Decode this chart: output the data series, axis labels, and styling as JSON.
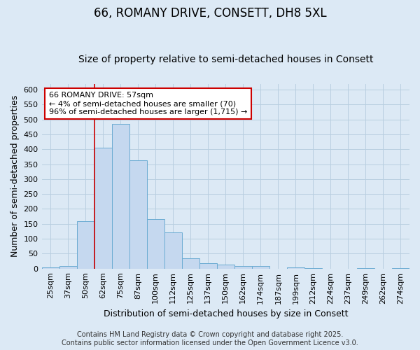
{
  "title": "66, ROMANY DRIVE, CONSETT, DH8 5XL",
  "subtitle": "Size of property relative to semi-detached houses in Consett",
  "xlabel": "Distribution of semi-detached houses by size in Consett",
  "ylabel": "Number of semi-detached properties",
  "categories": [
    "25sqm",
    "37sqm",
    "50sqm",
    "62sqm",
    "75sqm",
    "87sqm",
    "100sqm",
    "112sqm",
    "125sqm",
    "137sqm",
    "150sqm",
    "162sqm",
    "174sqm",
    "187sqm",
    "199sqm",
    "212sqm",
    "224sqm",
    "237sqm",
    "249sqm",
    "262sqm",
    "274sqm"
  ],
  "values": [
    5,
    8,
    160,
    405,
    485,
    362,
    165,
    122,
    35,
    17,
    13,
    9,
    8,
    0,
    4,
    2,
    0,
    0,
    2,
    0,
    2
  ],
  "bar_color": "#c5d8ef",
  "bar_edge_color": "#6aabd2",
  "grid_color": "#b8cfe0",
  "background_color": "#dce9f5",
  "red_line_index": 3,
  "annotation_text": "66 ROMANY DRIVE: 57sqm\n← 4% of semi-detached houses are smaller (70)\n96% of semi-detached houses are larger (1,715) →",
  "annotation_box_facecolor": "#ffffff",
  "annotation_box_edgecolor": "#cc0000",
  "ylim": [
    0,
    620
  ],
  "yticks": [
    0,
    50,
    100,
    150,
    200,
    250,
    300,
    350,
    400,
    450,
    500,
    550,
    600
  ],
  "footer": "Contains HM Land Registry data © Crown copyright and database right 2025.\nContains public sector information licensed under the Open Government Licence v3.0.",
  "title_fontsize": 12,
  "subtitle_fontsize": 10,
  "axis_fontsize": 9,
  "tick_fontsize": 8,
  "annotation_fontsize": 8,
  "footer_fontsize": 7
}
